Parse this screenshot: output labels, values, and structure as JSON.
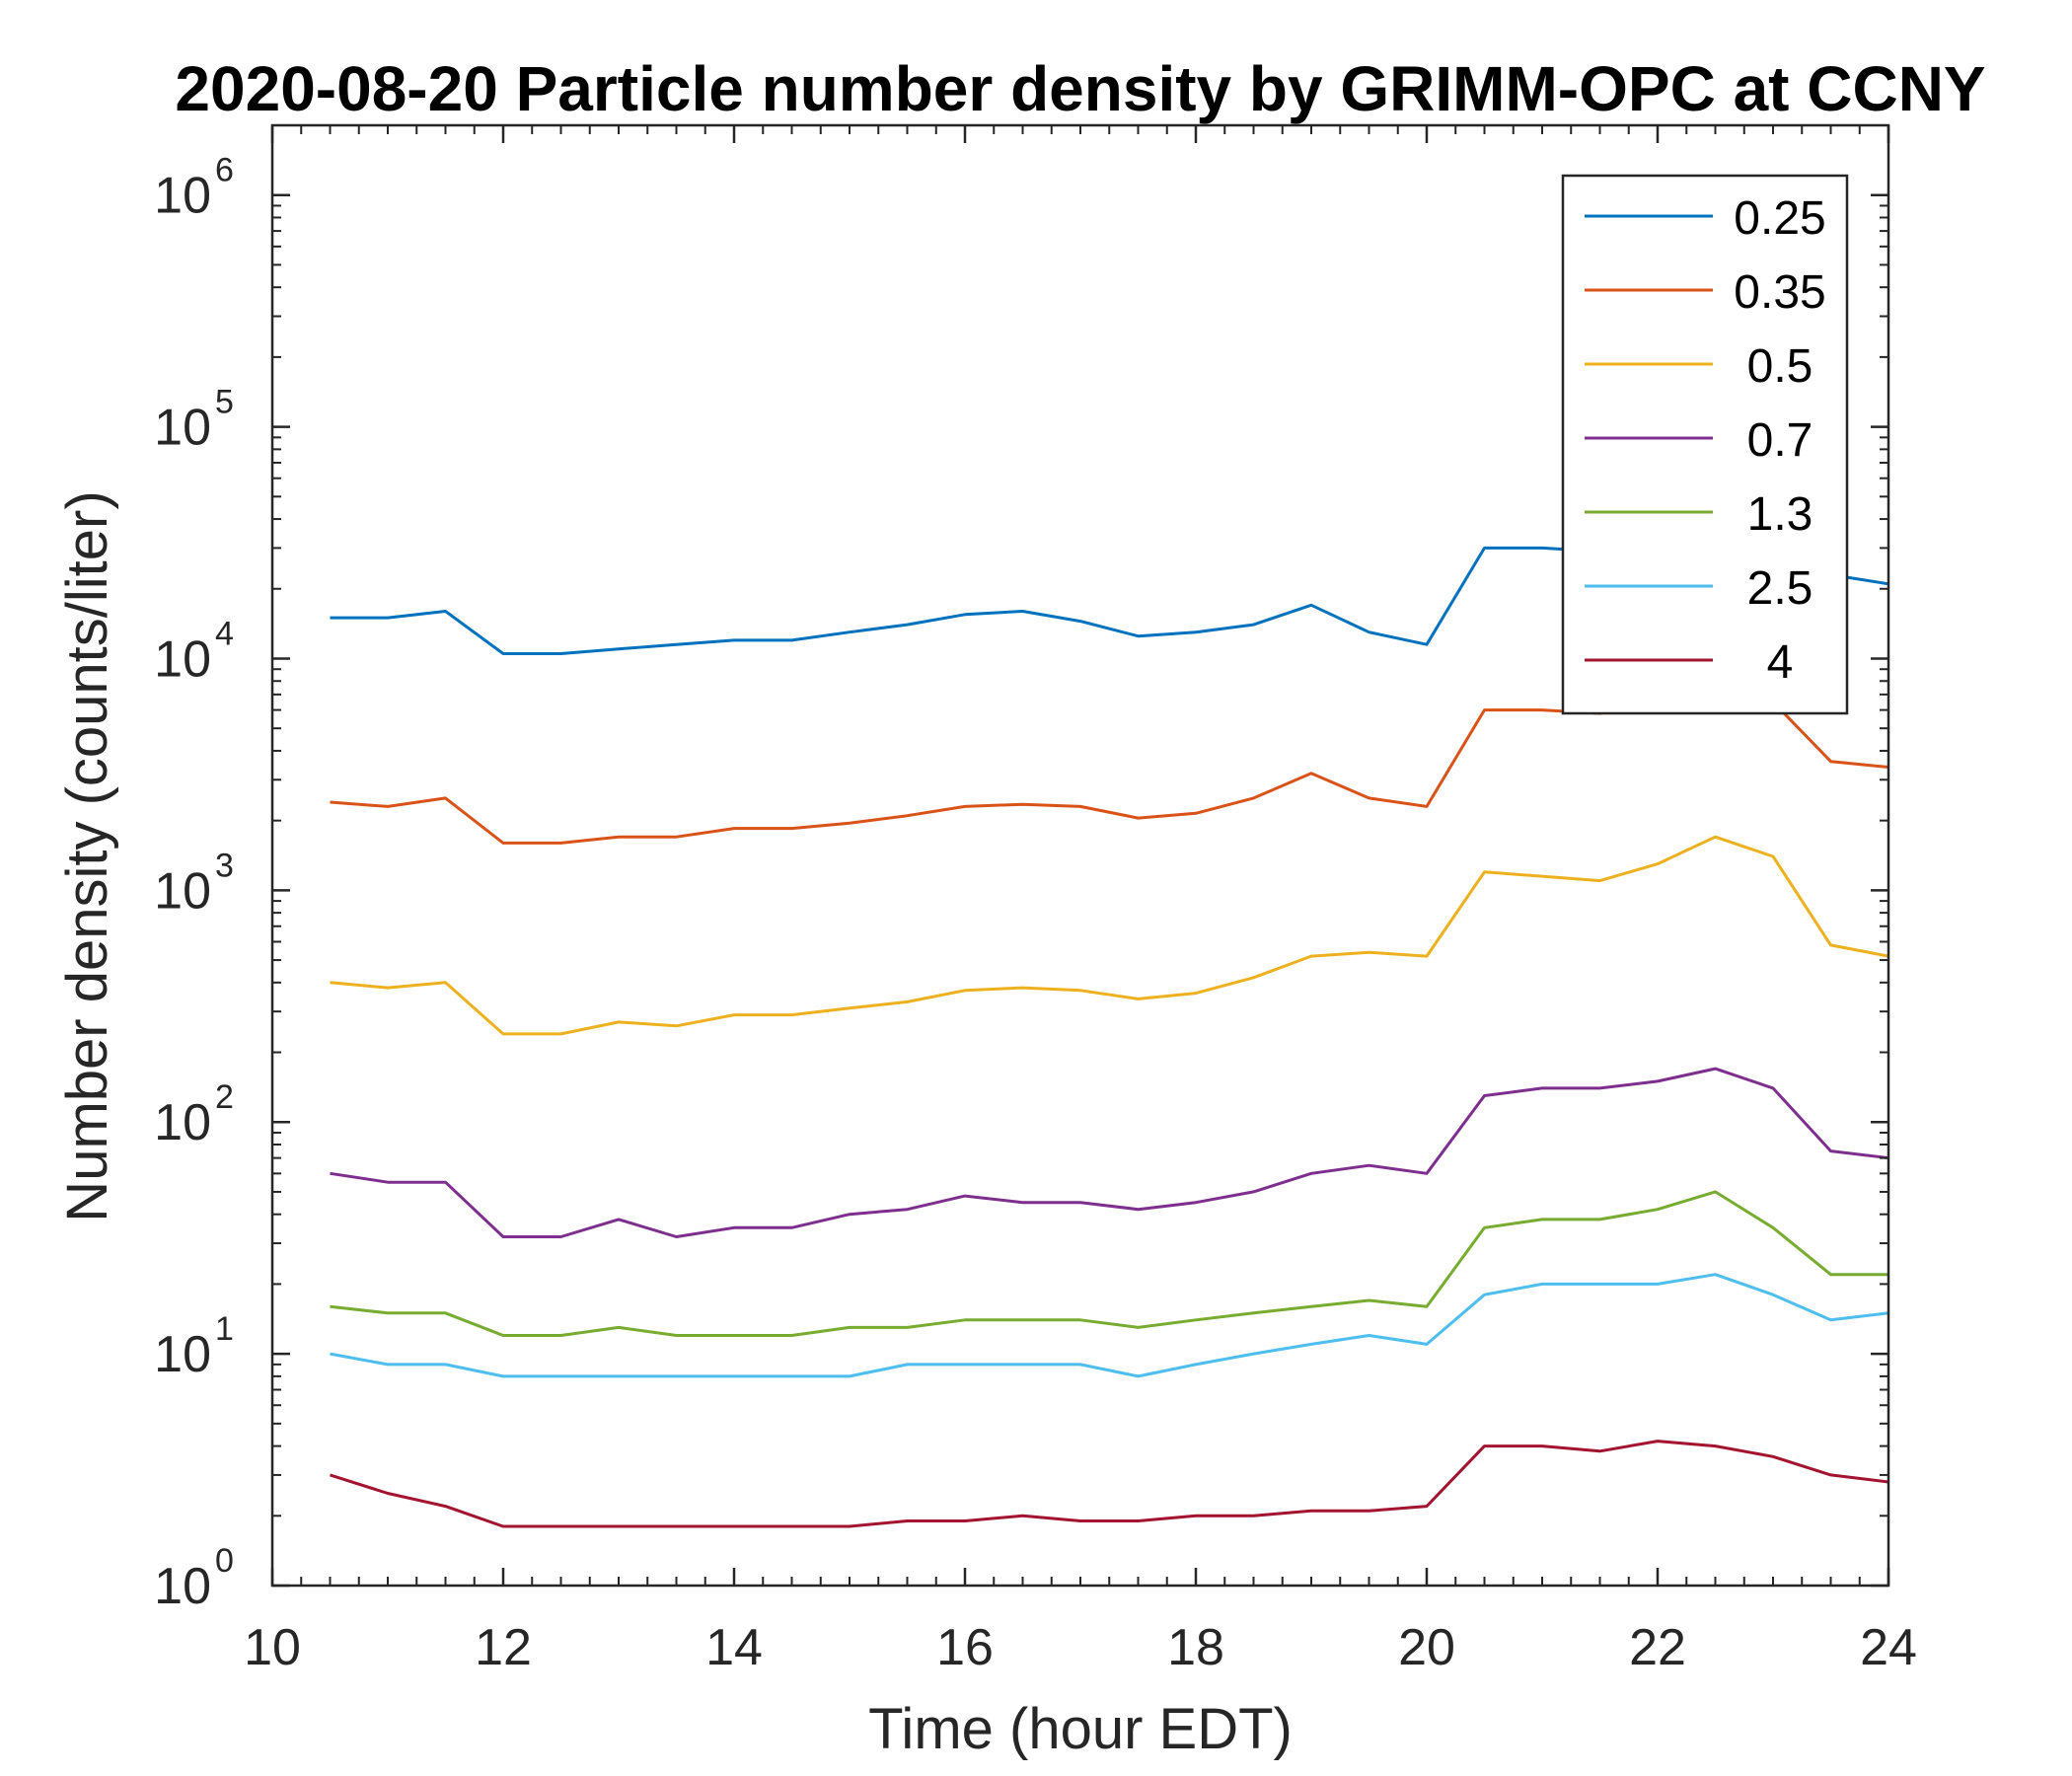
{
  "chart_data": {
    "type": "line",
    "title": "2020-08-20 Particle number density by GRIMM-OPC at CCNY",
    "xlabel": "Time (hour EDT)",
    "ylabel": "Number density (counts/liter)",
    "xlim": [
      10,
      24
    ],
    "ylim": [
      1,
      2000000
    ],
    "yscale": "log",
    "x_ticks": [
      "10",
      "12",
      "14",
      "16",
      "18",
      "20",
      "22",
      "24"
    ],
    "y_ticks": [
      {
        "base": "10",
        "exp": "0"
      },
      {
        "base": "10",
        "exp": "1"
      },
      {
        "base": "10",
        "exp": "2"
      },
      {
        "base": "10",
        "exp": "3"
      },
      {
        "base": "10",
        "exp": "4"
      },
      {
        "base": "10",
        "exp": "5"
      },
      {
        "base": "10",
        "exp": "6"
      }
    ],
    "legend_position": "top-right",
    "x": [
      10.5,
      11.0,
      11.5,
      12.0,
      12.5,
      13.0,
      13.5,
      14.0,
      14.5,
      15.0,
      15.5,
      16.0,
      16.5,
      17.0,
      17.5,
      18.0,
      18.5,
      19.0,
      19.5,
      20.0,
      20.5,
      21.0,
      21.5,
      22.0,
      22.5,
      23.0,
      23.5,
      24.0
    ],
    "series": [
      {
        "name": "0.25",
        "color": "#0072BD",
        "values": [
          15000,
          15000,
          16000,
          10500,
          10500,
          11000,
          11500,
          12000,
          12000,
          13000,
          14000,
          15500,
          16000,
          14500,
          12500,
          13000,
          14000,
          17000,
          13000,
          11500,
          30000,
          30000,
          29000,
          28500,
          28000,
          26000,
          23000,
          21000
        ]
      },
      {
        "name": "0.35",
        "color": "#D95319",
        "values": [
          2400,
          2300,
          2500,
          1600,
          1600,
          1700,
          1700,
          1850,
          1850,
          1950,
          2100,
          2300,
          2350,
          2300,
          2050,
          2150,
          2500,
          3200,
          2500,
          2300,
          6000,
          6000,
          5800,
          6500,
          7000,
          6500,
          3600,
          3400
        ]
      },
      {
        "name": "0.5",
        "color": "#EDB120",
        "values": [
          400,
          380,
          400,
          240,
          240,
          270,
          260,
          290,
          290,
          310,
          330,
          370,
          380,
          370,
          340,
          360,
          420,
          520,
          540,
          520,
          1200,
          1150,
          1100,
          1300,
          1700,
          1400,
          580,
          520
        ]
      },
      {
        "name": "0.7",
        "color": "#7E2F8E",
        "values": [
          60,
          55,
          55,
          32,
          32,
          38,
          32,
          35,
          35,
          40,
          42,
          48,
          45,
          45,
          42,
          45,
          50,
          60,
          65,
          60,
          130,
          140,
          140,
          150,
          170,
          140,
          75,
          70
        ]
      },
      {
        "name": "1.3",
        "color": "#77AC30",
        "values": [
          16,
          15,
          15,
          12,
          12,
          13,
          12,
          12,
          12,
          13,
          13,
          14,
          14,
          14,
          13,
          14,
          15,
          16,
          17,
          16,
          35,
          38,
          38,
          42,
          50,
          35,
          22,
          22
        ]
      },
      {
        "name": "2.5",
        "color": "#4DBEEE",
        "values": [
          10,
          9,
          9,
          8,
          8,
          8,
          8,
          8,
          8,
          8,
          9,
          9,
          9,
          9,
          8,
          9,
          10,
          11,
          12,
          11,
          18,
          20,
          20,
          20,
          22,
          18,
          14,
          15
        ]
      },
      {
        "name": "4",
        "color": "#A2142F",
        "values": [
          3,
          2.5,
          2.2,
          1.8,
          1.8,
          1.8,
          1.8,
          1.8,
          1.8,
          1.8,
          1.9,
          1.9,
          2.0,
          1.9,
          1.9,
          2.0,
          2.0,
          2.1,
          2.1,
          2.2,
          4.0,
          4.0,
          3.8,
          4.2,
          4.0,
          3.6,
          3.0,
          2.8
        ]
      }
    ]
  }
}
